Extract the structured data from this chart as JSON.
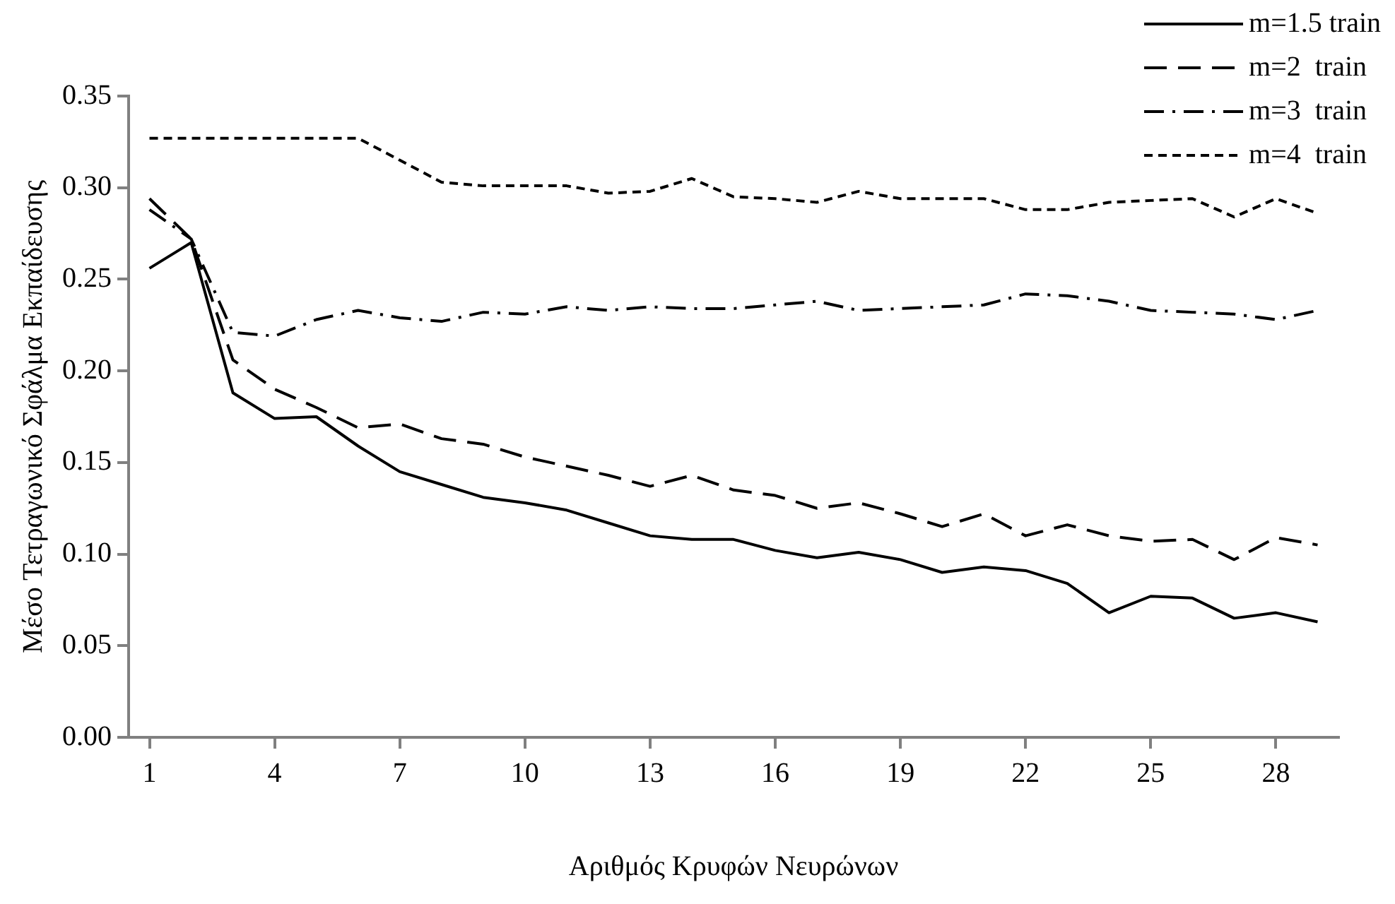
{
  "chart_data": {
    "type": "line",
    "xlabel": "Αριθμός Κρυφών Νευρώνων",
    "ylabel": "Μέσο Τετραγωνικό Σφάλμα Εκπαίδευσης",
    "categories": [
      "1",
      null,
      null,
      "4",
      null,
      null,
      "7",
      null,
      null,
      "10",
      null,
      null,
      "13",
      null,
      null,
      "16",
      null,
      null,
      "19",
      null,
      null,
      "22",
      null,
      null,
      "25",
      null,
      null,
      "28",
      null
    ],
    "ylim": [
      0,
      0.35
    ],
    "yticks": [
      {
        "value": 0,
        "label": "0.00"
      },
      0.05,
      {
        "value": 0.1,
        "label": "0.10"
      },
      0.15,
      {
        "value": 0.2,
        "label": "0.20"
      },
      0.25,
      {
        "value": 0.3,
        "label": "0.30"
      },
      0.35
    ],
    "grid": false,
    "legend": "top right",
    "marker": "none",
    "series": [
      {
        "name": "m=1.5 train",
        "color": "#000000",
        "line_style": "solid",
        "values": [
          0.256,
          0.27,
          0.188,
          0.174,
          0.175,
          0.159,
          0.145,
          0.138,
          0.131,
          0.128,
          0.124,
          0.117,
          0.11,
          0.108,
          0.108,
          0.102,
          0.098,
          0.101,
          0.097,
          0.09,
          0.093,
          0.091,
          0.084,
          0.068,
          0.077,
          0.076,
          0.065,
          0.068,
          0.063
        ]
      },
      {
        "name": "m=2  train",
        "color": "#000000",
        "line_style": "dashed",
        "values": [
          0.294,
          0.272,
          0.206,
          0.19,
          0.18,
          0.169,
          0.171,
          0.163,
          0.16,
          0.153,
          0.148,
          0.143,
          0.137,
          0.143,
          0.135,
          0.132,
          0.125,
          0.128,
          0.122,
          0.115,
          0.122,
          0.11,
          0.116,
          0.11,
          0.107,
          0.108,
          0.097,
          0.109,
          0.105
        ]
      },
      {
        "name": "m=3  train",
        "color": "#000000",
        "line_style": "dashdot",
        "values": [
          0.288,
          0.272,
          0.221,
          0.219,
          0.228,
          0.233,
          0.229,
          0.227,
          0.232,
          0.231,
          0.235,
          0.233,
          0.235,
          0.234,
          0.234,
          0.236,
          0.238,
          0.233,
          0.234,
          0.235,
          0.236,
          0.242,
          0.241,
          0.238,
          0.233,
          0.232,
          0.231,
          0.228,
          0.233
        ]
      },
      {
        "name": "m=4  train",
        "color": "#000000",
        "line_style": "dotted",
        "values": [
          0.327,
          0.327,
          0.327,
          0.327,
          0.327,
          0.327,
          0.315,
          0.303,
          0.301,
          0.301,
          0.301,
          0.297,
          0.298,
          0.305,
          0.295,
          0.294,
          0.292,
          0.298,
          0.294,
          0.294,
          0.294,
          0.288,
          0.288,
          0.292,
          0.293,
          0.294,
          0.284,
          0.294,
          0.286
        ]
      }
    ]
  }
}
